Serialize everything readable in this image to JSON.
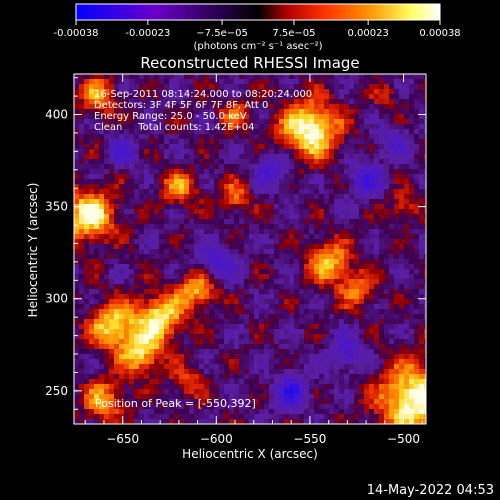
{
  "footer_timestamp": "14-May-2022 04:53",
  "colorbar": {
    "ticks": [
      "-0.00038",
      "-0.00023",
      "−7.5e−05",
      "7.5e−05",
      "0.00023",
      "0.00038"
    ],
    "tick_values": [
      -0.00038,
      -0.00023,
      -7.5e-05,
      7.5e-05,
      0.00023,
      0.00038
    ],
    "range": [
      -0.00038,
      0.00038
    ],
    "units": "(photons cm⁻² s⁻¹ asec⁻²)",
    "colors": [
      "#0000ff",
      "#6a00c8",
      "#000000",
      "#b00000",
      "#ff3000",
      "#ff9000",
      "#ffff60",
      "#ffffff"
    ]
  },
  "chart_data": {
    "type": "heatmap",
    "title": "Reconstructed RHESSI Image",
    "xlabel": "Heliocentric X (arcsec)",
    "ylabel": "Heliocentric Y (arcsec)",
    "xlim": [
      -676,
      -488
    ],
    "ylim": [
      232,
      422
    ],
    "xticks": [
      -650,
      -600,
      -550,
      -500
    ],
    "yticks": [
      250,
      300,
      350,
      400
    ],
    "xtick_labels": [
      "−650",
      "−600",
      "−550",
      "−500"
    ],
    "ytick_labels": [
      "250",
      "300",
      "350",
      "400"
    ],
    "annotations": [
      "16-Sep-2011 08:14:24.000 to 08:20:24.000",
      "Detectors: 3F 4F 5F 6F 7F 8F, Att 0",
      "Energy Range: 25.0 - 50.0 keV",
      "Clean     Total counts: 1.42E+04"
    ],
    "peak_label": "Position of Peak = [-550,392]",
    "peak": [
      -550,
      392
    ],
    "blobs": [
      {
        "x": -550,
        "y": 392,
        "amp": 1.0,
        "r": 11
      },
      {
        "x": -493,
        "y": 245,
        "amp": 1.0,
        "r": 14
      },
      {
        "x": -668,
        "y": 345,
        "amp": 0.9,
        "r": 10
      },
      {
        "x": -655,
        "y": 285,
        "amp": 0.8,
        "r": 9
      },
      {
        "x": -630,
        "y": 290,
        "amp": 0.85,
        "r": 9
      },
      {
        "x": -640,
        "y": 270,
        "amp": 0.75,
        "r": 8
      },
      {
        "x": -610,
        "y": 305,
        "amp": 0.7,
        "r": 7
      },
      {
        "x": -663,
        "y": 410,
        "amp": 0.6,
        "r": 7
      },
      {
        "x": -620,
        "y": 360,
        "amp": 0.55,
        "r": 7
      },
      {
        "x": -590,
        "y": 355,
        "amp": 0.5,
        "r": 6
      },
      {
        "x": -590,
        "y": 400,
        "amp": 0.45,
        "r": 6
      },
      {
        "x": -540,
        "y": 320,
        "amp": 0.7,
        "r": 8
      },
      {
        "x": -525,
        "y": 305,
        "amp": 0.5,
        "r": 7
      },
      {
        "x": -660,
        "y": 245,
        "amp": 0.6,
        "r": 8
      },
      {
        "x": -615,
        "y": 255,
        "amp": 0.45,
        "r": 6
      },
      {
        "x": -500,
        "y": 350,
        "amp": 0.4,
        "r": 6
      },
      {
        "x": -510,
        "y": 410,
        "amp": 0.3,
        "r": 5
      },
      {
        "x": -560,
        "y": 250,
        "amp": -0.6,
        "r": 7
      },
      {
        "x": -600,
        "y": 320,
        "amp": -0.55,
        "r": 7
      },
      {
        "x": -570,
        "y": 370,
        "amp": -0.5,
        "r": 7
      },
      {
        "x": -520,
        "y": 365,
        "amp": -0.55,
        "r": 7
      },
      {
        "x": -650,
        "y": 380,
        "amp": -0.45,
        "r": 6
      },
      {
        "x": -530,
        "y": 270,
        "amp": -0.5,
        "r": 7
      },
      {
        "x": -505,
        "y": 385,
        "amp": -0.35,
        "r": 6
      }
    ]
  }
}
